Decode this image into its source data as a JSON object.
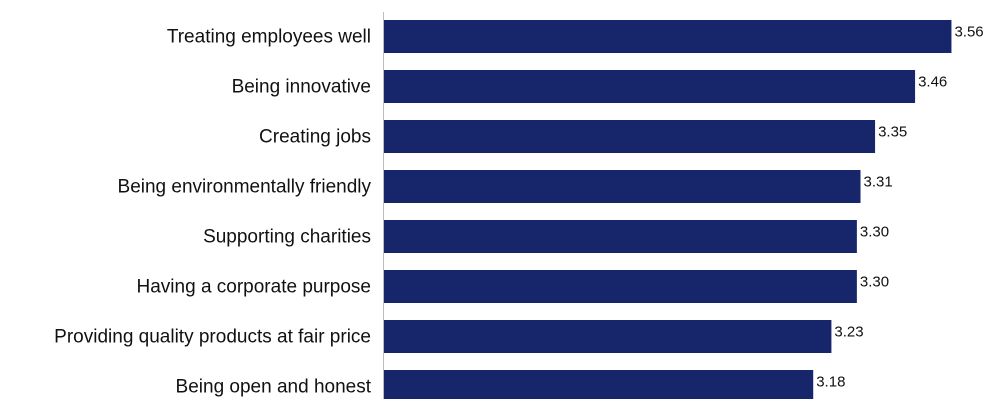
{
  "chart_data": {
    "type": "bar",
    "orientation": "horizontal",
    "categories": [
      "Treating employees well",
      "Being innovative",
      "Creating jobs",
      "Being environmentally friendly",
      "Supporting charities",
      "Having a corporate purpose",
      "Providing quality products at fair price",
      "Being open and honest"
    ],
    "values": [
      3.56,
      3.46,
      3.35,
      3.31,
      3.3,
      3.3,
      3.23,
      3.18
    ],
    "value_labels": [
      "3.56",
      "3.46",
      "3.35",
      "3.31",
      "3.30",
      "3.30",
      "3.23",
      "3.18"
    ],
    "title": "",
    "xlabel": "",
    "ylabel": "",
    "xlim": [
      2.0,
      3.6
    ],
    "grid": false,
    "legend": "none",
    "bar_color": "#17256b"
  }
}
